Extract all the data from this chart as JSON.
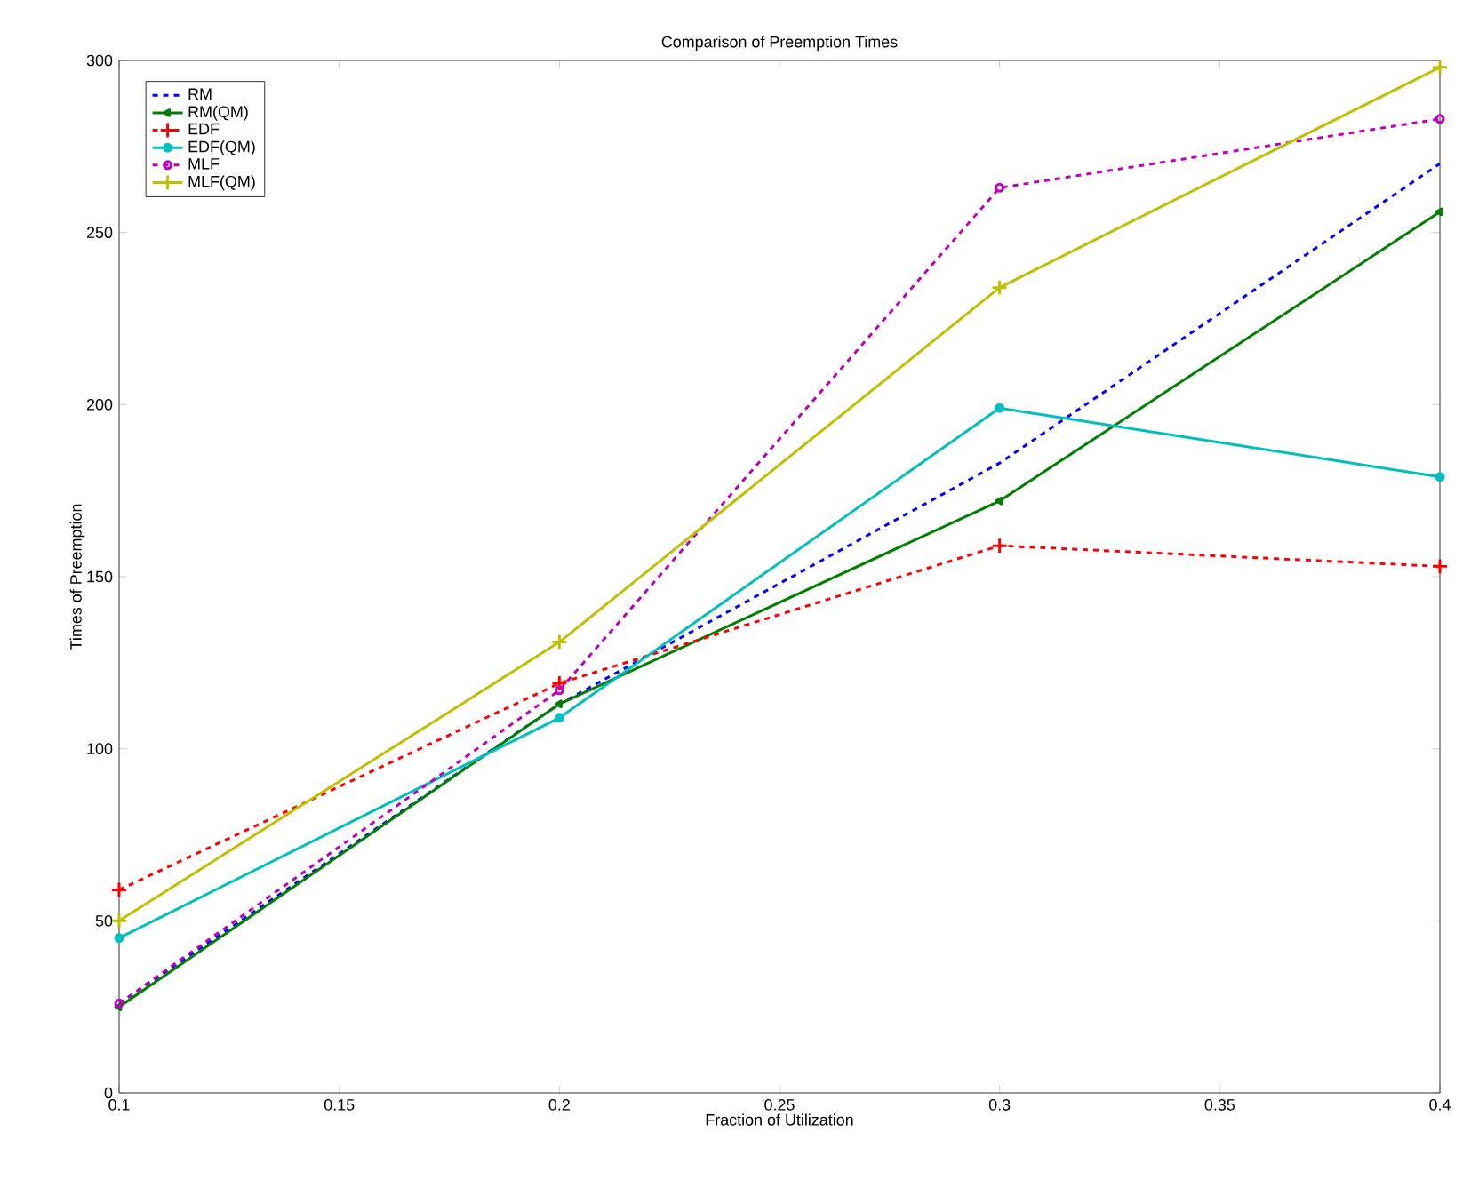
{
  "chart_data": {
    "type": "line",
    "title": "Comparison of Preemption Times",
    "xlabel": "Fraction of Utilization",
    "ylabel": "Times of Preemption",
    "x": [
      0.1,
      0.2,
      0.3,
      0.4
    ],
    "series": [
      {
        "name": "RM",
        "color": "#0000ff",
        "values": [
          26,
          113,
          183,
          270
        ],
        "marker": "none",
        "line_style": "dashed"
      },
      {
        "name": "RM(QM)",
        "color": "#008000",
        "values": [
          25,
          113,
          172,
          256
        ],
        "marker": "triangle",
        "line_style": "solid"
      },
      {
        "name": "EDF",
        "color": "#ff0000",
        "values": [
          59,
          119,
          159,
          153
        ],
        "marker": "cross",
        "line_style": "dashed"
      },
      {
        "name": "EDF(QM)",
        "color": "#00bfbf",
        "values": [
          45,
          109,
          199,
          179
        ],
        "marker": "circle",
        "line_style": "solid"
      },
      {
        "name": "MLF",
        "color": "#bf00bf",
        "values": [
          26,
          117,
          263,
          283
        ],
        "marker": "circle",
        "line_style": "dashed"
      },
      {
        "name": "MLF(QM)",
        "color": "#bfbf00",
        "values": [
          50,
          131,
          234,
          298
        ],
        "marker": "cross",
        "line_style": "solid"
      }
    ],
    "xlim": [
      0.1,
      0.4
    ],
    "ylim": [
      0,
      300
    ],
    "xticks": [
      0.1,
      0.15,
      0.2,
      0.25,
      0.3,
      0.35,
      0.4
    ],
    "yticks": [
      0,
      50,
      100,
      150,
      200,
      250,
      300
    ],
    "grid": false,
    "legend": "top left"
  }
}
